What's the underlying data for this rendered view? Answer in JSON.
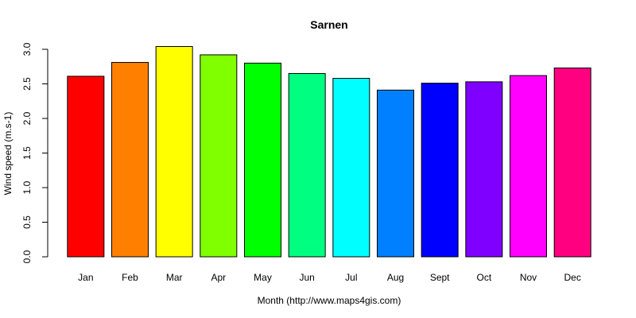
{
  "chart_data": {
    "type": "bar",
    "title": "Sarnen",
    "xlabel": "Month (http://www.maps4gis.com)",
    "ylabel": "Wind speed (m.s-1)",
    "ylim": [
      0,
      3.0
    ],
    "yticks": [
      "0.0",
      "0.5",
      "1.0",
      "1.5",
      "2.0",
      "2.5",
      "3.0"
    ],
    "categories": [
      "Jan",
      "Feb",
      "Mar",
      "Apr",
      "May",
      "Jun",
      "Jul",
      "Aug",
      "Sept",
      "Oct",
      "Nov",
      "Dec"
    ],
    "values": [
      2.61,
      2.81,
      3.04,
      2.92,
      2.8,
      2.65,
      2.58,
      2.41,
      2.51,
      2.53,
      2.62,
      2.73
    ],
    "colors": [
      "#FF0000",
      "#FF8000",
      "#FFFF00",
      "#80FF00",
      "#00FF00",
      "#00FF80",
      "#00FFFF",
      "#0080FF",
      "#0000FF",
      "#8000FF",
      "#FF00FF",
      "#FF0080"
    ],
    "grid": false,
    "legend": "none"
  }
}
